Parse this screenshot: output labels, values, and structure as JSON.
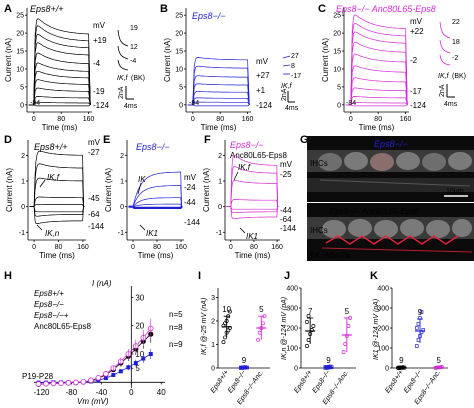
{
  "colors": {
    "wt": "#000000",
    "ko": "#1f1fd6",
    "rescue": "#d62bd6",
    "grid": "#888888"
  },
  "panels": {
    "A": {
      "letter": "A",
      "genotype": "Eps8+/+",
      "color": "#000000",
      "labels": [
        "mV",
        "+19",
        "-4",
        "-19",
        "-124",
        "-84"
      ],
      "ins_labels": [
        "19",
        "12",
        "-4"
      ],
      "ins_names": [
        "IK,f",
        "(BK)"
      ],
      "scale": [
        "2nA",
        "4ms"
      ]
    },
    "B": {
      "letter": "B",
      "genotype": "Eps8−/−",
      "color": "#1f1fd6",
      "labels": [
        "mV",
        "+27",
        "+1",
        "-124",
        "-84"
      ],
      "ins_labels": [
        "27",
        "8",
        "-17"
      ],
      "ins_names": [
        "IK,f"
      ],
      "scale": [
        "2nA",
        "4ms"
      ]
    },
    "C": {
      "letter": "C",
      "genotype": "Eps8−/− Anc80L65-Eps8",
      "color": "#d62bd6",
      "labels": [
        "mV",
        "+22",
        "-2",
        "-17",
        "-124",
        "-84"
      ],
      "ins_labels": [
        "22",
        "18",
        "-2"
      ],
      "ins_names": [
        "IK,f",
        "(BK)"
      ],
      "scale": [
        "2nA",
        "4ms"
      ]
    },
    "D": {
      "letter": "D",
      "genotype": "Eps8+/+",
      "color": "#000000",
      "labels": [
        "mV",
        "-27",
        "-45",
        "-64",
        "-144"
      ],
      "curr": [
        "IK,f",
        "IK,n"
      ]
    },
    "E": {
      "letter": "E",
      "genotype": "Eps8−/−",
      "color": "#1f1fd6",
      "labels": [
        "mV",
        "-24",
        "-44",
        "-144"
      ],
      "curr": [
        "IK",
        "IK1"
      ]
    },
    "F": {
      "letter": "F",
      "genotype": "Eps8−/−",
      "genotype2": "Anc80L65-Eps8",
      "color": "#d62bd6",
      "labels": [
        "mV",
        "-25",
        "-44",
        "-64",
        "-144"
      ],
      "curr": [
        "IK,f",
        "IK1"
      ]
    },
    "G": {
      "letter": "G",
      "title1": "Eps8−/−",
      "title2": "Eps8−/− Anc80L65-Eps8",
      "ihc": "IHCs",
      "scale": "10μm",
      "legend_bk": "BK",
      "legend_sep": "/",
      "legend_myo": "Myo7a"
    },
    "H": {
      "letter": "H",
      "legend": [
        "Eps8+/+",
        "Eps8−/−",
        "Eps8−/−+",
        "Anc80L65-Eps8"
      ],
      "age": "P19-P28",
      "ylabel": "I (nA)",
      "xlabel": "Vm (mV)",
      "n_labels": [
        "n=5",
        "n=8",
        "n=9"
      ]
    },
    "I": {
      "letter": "I",
      "ylabel": "IK,f @-25 mV (nA)",
      "n": [
        "10",
        "9",
        "5"
      ],
      "xt": [
        "Eps8+/+",
        "Eps8−/−",
        "Eps8−/−Anc."
      ]
    },
    "J": {
      "letter": "J",
      "ylabel": "IK,n @-124 mV (pA)",
      "n": [
        "7",
        "9",
        "5"
      ],
      "xt": [
        "Eps8+/+",
        "Eps8−/−",
        "Eps8−/−Anc."
      ]
    },
    "K": {
      "letter": "K",
      "ylabel": "IK1 @-124 mV (pA)",
      "n": [
        "9",
        "9",
        "5"
      ],
      "xt": [
        "Eps8+/+",
        "Eps8−/−",
        "Eps8−/−Anc."
      ]
    }
  },
  "chart_data": [
    {
      "type": "line",
      "panel": "A",
      "xlabel": "Time (ms)",
      "ylabel": "Current (nA)",
      "xticks": [
        0,
        80,
        160
      ],
      "yticks": [
        0,
        5,
        10,
        15,
        20,
        25
      ],
      "xlim": [
        -20,
        170
      ],
      "ylim": [
        -2,
        27
      ],
      "series": [
        {
          "values": [
            25.5,
            19.5
          ]
        },
        {
          "values": [
            23.5,
            17.6
          ]
        },
        {
          "values": [
            21,
            15.7
          ]
        },
        {
          "values": [
            18.5,
            13.7
          ]
        },
        {
          "values": [
            15.5,
            11.3
          ]
        },
        {
          "values": [
            12.5,
            9.2
          ]
        },
        {
          "values": [
            10,
            7.4
          ]
        },
        {
          "values": [
            7.5,
            5.6
          ]
        },
        {
          "values": [
            5,
            3.7
          ]
        },
        {
          "values": [
            2.5,
            1.9
          ]
        },
        {
          "values": [
            0.8,
            0.5
          ]
        },
        {
          "values": [
            -0.3,
            -0.3
          ]
        }
      ]
    },
    {
      "type": "line",
      "panel": "B",
      "xlabel": "Time (ms)",
      "ylabel": "Current (nA)",
      "xticks": [
        0,
        80,
        160
      ],
      "yticks": [
        0,
        5,
        10,
        15,
        20,
        25
      ],
      "xlim": [
        -20,
        170
      ],
      "ylim": [
        -2,
        27
      ],
      "series": [
        {
          "values": [
            13.5,
            12.5
          ]
        },
        {
          "values": [
            11,
            10.2
          ]
        },
        {
          "values": [
            8.3,
            7.7
          ]
        },
        {
          "values": [
            6,
            5.5
          ]
        },
        {
          "values": [
            3.8,
            3.5
          ]
        },
        {
          "values": [
            2,
            1.8
          ]
        },
        {
          "values": [
            0.8,
            0.7
          ]
        },
        {
          "values": [
            -0.3,
            -0.3
          ]
        }
      ]
    },
    {
      "type": "line",
      "panel": "C",
      "xlabel": "Time (ms)",
      "ylabel": "Current (nA)",
      "xticks": [
        0,
        80,
        160
      ],
      "yticks": [
        0,
        5,
        10,
        15,
        20,
        25
      ],
      "xlim": [
        -20,
        170
      ],
      "ylim": [
        -2,
        27
      ],
      "series": [
        {
          "values": [
            26.5,
            21
          ]
        },
        {
          "values": [
            24,
            19
          ]
        },
        {
          "values": [
            21.5,
            17
          ]
        },
        {
          "values": [
            18.5,
            14.5
          ]
        },
        {
          "values": [
            15,
            11.8
          ]
        },
        {
          "values": [
            11.5,
            9
          ]
        },
        {
          "values": [
            8,
            6.3
          ]
        },
        {
          "values": [
            5,
            3.9
          ]
        },
        {
          "values": [
            2.5,
            1.9
          ]
        },
        {
          "values": [
            0.7,
            0.5
          ]
        },
        {
          "values": [
            -0.3,
            -0.3
          ]
        }
      ]
    },
    {
      "type": "line",
      "panel": "D",
      "xlabel": "Time (ms)",
      "ylabel": "Current (nA)",
      "xticks": [
        0,
        80,
        160
      ],
      "yticks": [
        -1,
        0,
        1,
        2
      ],
      "xlim": [
        -20,
        170
      ],
      "ylim": [
        -1.3,
        2.6
      ]
    },
    {
      "type": "line",
      "panel": "E",
      "xlabel": "Time (ms)",
      "ylabel": "Current (nA)",
      "xticks": [
        0,
        80,
        160
      ],
      "yticks": [
        -1,
        0,
        1,
        2
      ],
      "xlim": [
        -20,
        170
      ],
      "ylim": [
        -1.3,
        2.6
      ]
    },
    {
      "type": "line",
      "panel": "F",
      "xlabel": "Time (ms)",
      "ylabel": "Current (nA)",
      "xticks": [
        0,
        80,
        160
      ],
      "yticks": [
        -1,
        0,
        1,
        2
      ],
      "xlim": [
        -20,
        170
      ],
      "ylim": [
        -1.3,
        2.6
      ]
    },
    {
      "type": "scatter",
      "panel": "H",
      "xlabel": "Vm (mV)",
      "ylabel": "I (nA)",
      "xticks": [
        -120,
        -80,
        -40,
        0,
        40
      ],
      "yticks": [
        5,
        10,
        20,
        30
      ],
      "xlim": [
        -130,
        45
      ],
      "ylim": [
        -2,
        34
      ],
      "series": [
        {
          "name": "Eps8+/+",
          "x": [
            -124,
            -114,
            -104,
            -94,
            -84,
            -74,
            -64,
            -54,
            -44,
            -34,
            -24,
            -14,
            -4,
            6,
            16,
            26
          ],
          "y": [
            -0.7,
            -0.5,
            -0.4,
            -0.3,
            -0.2,
            -0.1,
            0.1,
            0.6,
            1.4,
            2.7,
            4.5,
            6.8,
            9.2,
            11.8,
            14.5,
            17
          ]
        },
        {
          "name": "Eps8−/−",
          "x": [
            -124,
            -114,
            -104,
            -94,
            -84,
            -74,
            -64,
            -54,
            -44,
            -34,
            -24,
            -14,
            -4,
            6,
            16,
            26
          ],
          "y": [
            -0.1,
            -0.1,
            0,
            0,
            0,
            0,
            0.1,
            0.3,
            0.7,
            1.5,
            2.6,
            3.9,
            5.3,
            6.8,
            8.4,
            10
          ]
        },
        {
          "name": "Eps8−/−+Anc80L65-Eps8",
          "x": [
            -124,
            -114,
            -104,
            -94,
            -84,
            -74,
            -64,
            -54,
            -44,
            -34,
            -24,
            -14,
            -4,
            6,
            16,
            26
          ],
          "y": [
            -0.6,
            -0.5,
            -0.4,
            -0.3,
            -0.2,
            0,
            0.2,
            0.7,
            1.6,
            3,
            5,
            7.4,
            10,
            12.8,
            15.7,
            19
          ]
        }
      ]
    },
    {
      "type": "scatter",
      "panel": "I",
      "ylabel": "IK,f @-25 mV (nA)",
      "yticks": [
        0,
        1,
        2,
        3
      ],
      "ylim": [
        0,
        3.4
      ],
      "categories": [
        "Eps8+/+",
        "Eps8−/−",
        "Eps8−/−Anc."
      ],
      "means": [
        1.75,
        0.02,
        1.7
      ],
      "errors": [
        0.45,
        0.02,
        0.5
      ],
      "points": [
        [
          1.1,
          1.3,
          1.5,
          1.6,
          1.7,
          1.8,
          1.9,
          2.0,
          2.2,
          2.4
        ],
        [
          0,
          0,
          0.01,
          0.01,
          0.02,
          0.02,
          0.03,
          0.03,
          0.04
        ],
        [
          1.2,
          1.5,
          1.7,
          1.9,
          2.2
        ]
      ]
    },
    {
      "type": "scatter",
      "panel": "J",
      "ylabel": "IK,n @-124 mV (pA)",
      "yticks": [
        0,
        100,
        200,
        300,
        400
      ],
      "ylim": [
        0,
        400
      ],
      "categories": [
        "Eps8+/+",
        "Eps8−/−",
        "Eps8−/−Anc."
      ],
      "means": [
        185,
        3,
        165
      ],
      "errors": [
        65,
        3,
        85
      ],
      "points": [
        [
          110,
          140,
          170,
          190,
          210,
          230,
          260
        ],
        [
          0,
          0,
          2,
          3,
          4,
          5,
          5,
          6,
          8
        ],
        [
          80,
          120,
          160,
          210,
          250
        ]
      ]
    },
    {
      "type": "scatter",
      "panel": "K",
      "ylabel": "IK1 @-124 mV (pA)",
      "yticks": [
        0,
        100,
        200,
        300,
        400
      ],
      "ylim": [
        0,
        400
      ],
      "categories": [
        "Eps8+/+",
        "Eps8−/−",
        "Eps8−/−Anc."
      ],
      "means": [
        2,
        185,
        3
      ],
      "errors": [
        2,
        60,
        3
      ],
      "points": [
        [
          0,
          0,
          1,
          1,
          2,
          2,
          3,
          3,
          4
        ],
        [
          110,
          140,
          160,
          180,
          190,
          200,
          220,
          250,
          280
        ],
        [
          0,
          2,
          3,
          4,
          5
        ]
      ]
    }
  ]
}
